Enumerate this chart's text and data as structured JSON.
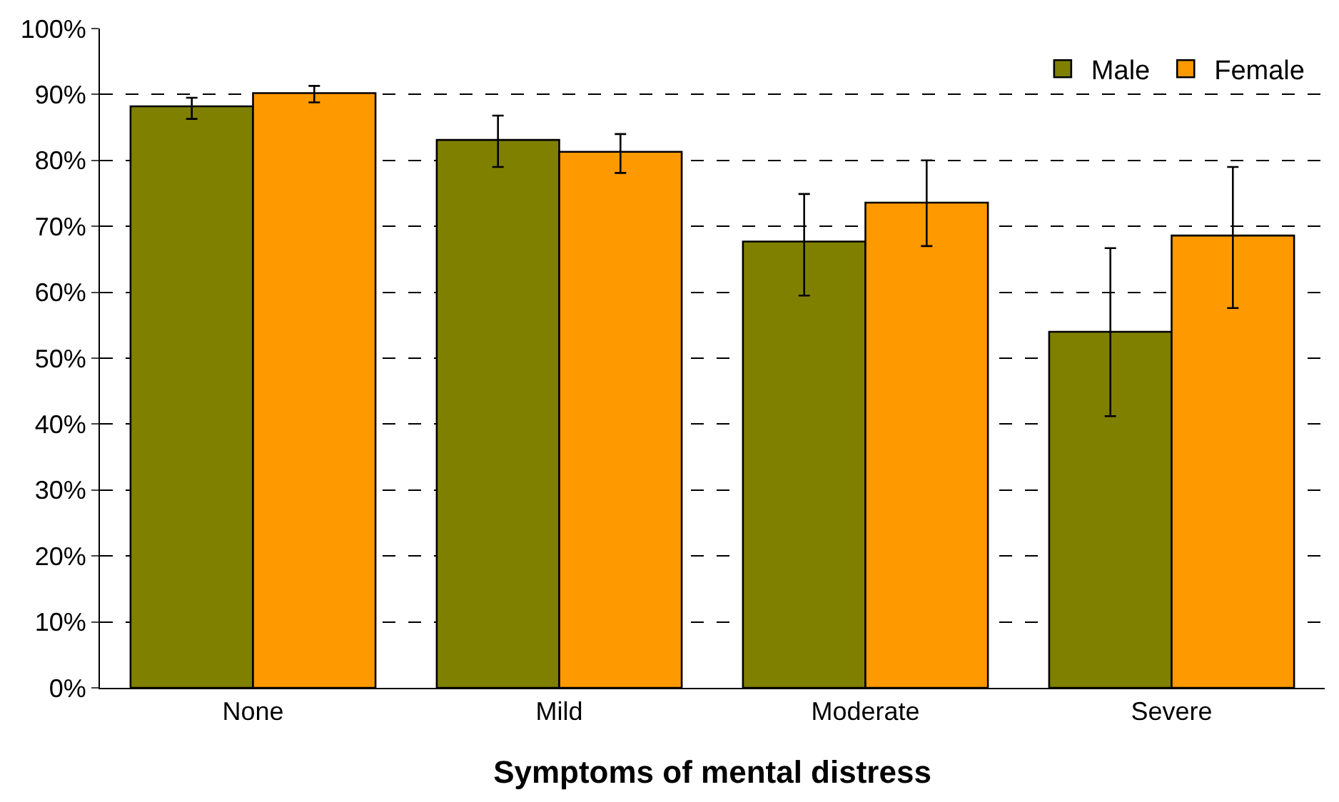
{
  "chart_data": {
    "type": "bar",
    "xlabel": "Symptoms of mental distress",
    "categories": [
      "None",
      "Mild",
      "Moderate",
      "Severe"
    ],
    "series": [
      {
        "name": "Male",
        "color": "#808000",
        "values": [
          88.2,
          83.1,
          67.7,
          54.0
        ],
        "errors": [
          [
            86.3,
            89.5
          ],
          [
            79.0,
            86.8
          ],
          [
            59.5,
            74.9
          ],
          [
            41.2,
            66.7
          ]
        ]
      },
      {
        "name": "Female",
        "color": "#ff9900",
        "values": [
          90.2,
          81.3,
          73.6,
          68.6
        ],
        "errors": [
          [
            88.8,
            91.3
          ],
          [
            78.1,
            84.0
          ],
          [
            67.0,
            80.0
          ],
          [
            57.6,
            79.0
          ]
        ]
      }
    ],
    "ylim": [
      0,
      100
    ],
    "yticks": [
      {
        "value": 0,
        "label": "0%"
      },
      {
        "value": 10,
        "label": "10%"
      },
      {
        "value": 20,
        "label": "20%"
      },
      {
        "value": 30,
        "label": "30%"
      },
      {
        "value": 40,
        "label": "40%"
      },
      {
        "value": 50,
        "label": "50%"
      },
      {
        "value": 60,
        "label": "60%"
      },
      {
        "value": 70,
        "label": "70%"
      },
      {
        "value": 80,
        "label": "80%"
      },
      {
        "value": 90,
        "label": "90%"
      },
      {
        "value": 100,
        "label": "100%"
      }
    ],
    "grid": "y",
    "line_style": "dashed",
    "legend": "top right"
  }
}
